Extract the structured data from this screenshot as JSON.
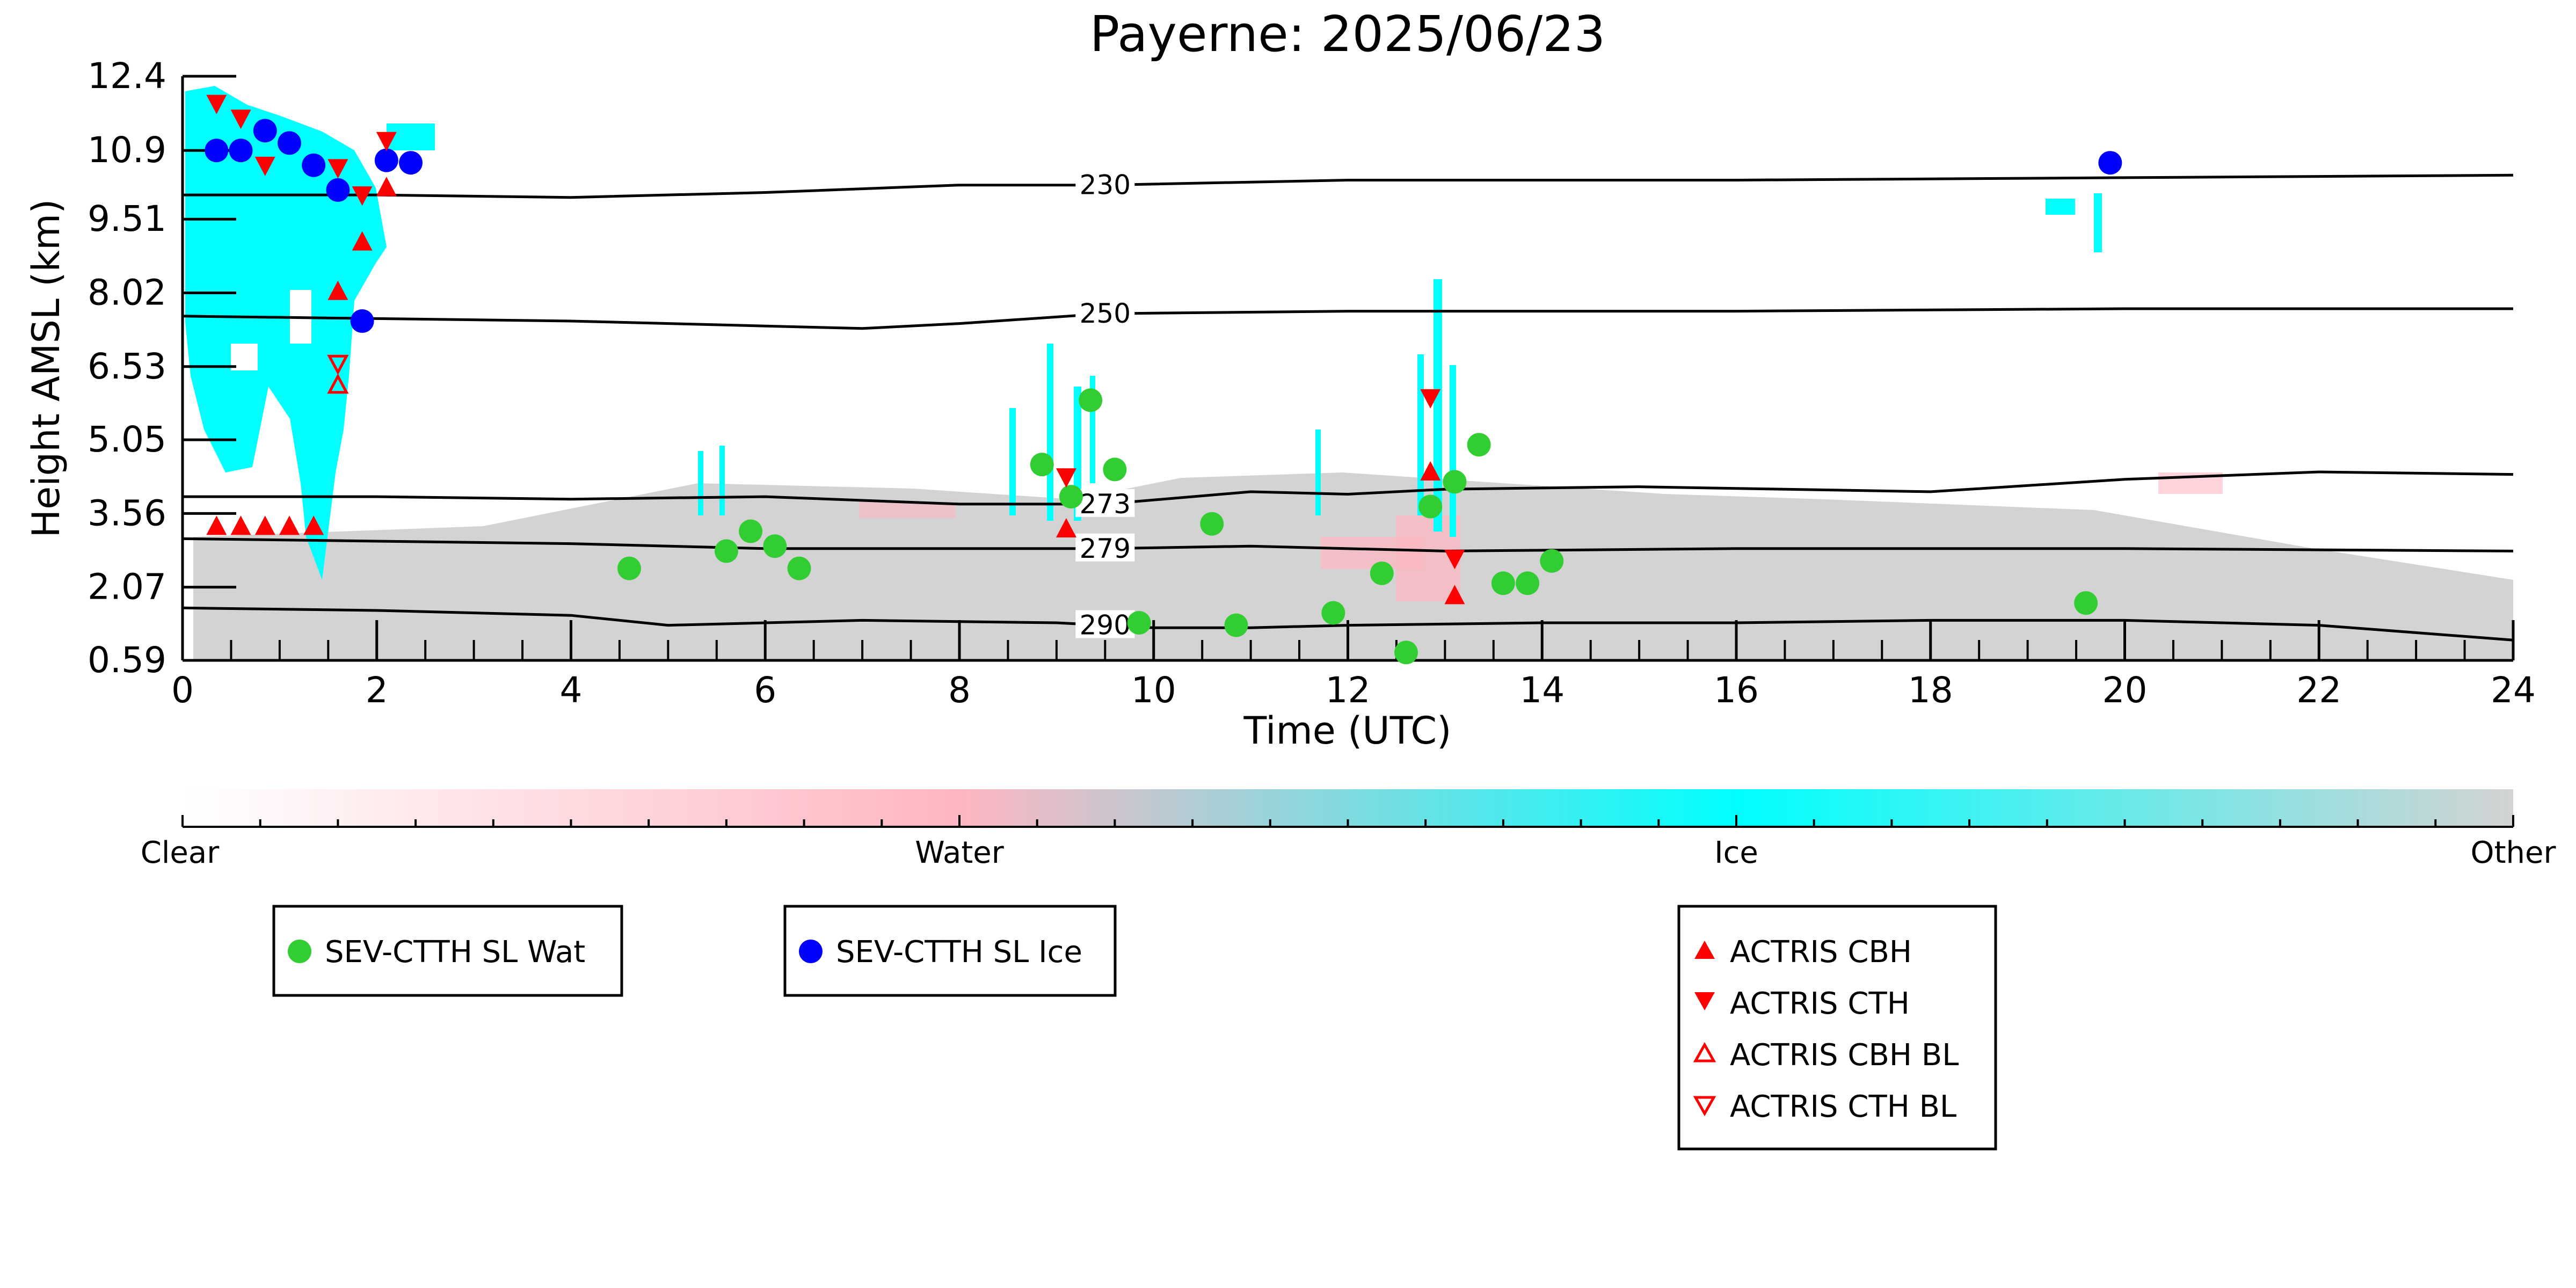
{
  "chart_data": {
    "type": "scatter",
    "title": "Payerne: 2025/06/23",
    "xlabel": "Time (UTC)",
    "ylabel": "Height AMSL (km)",
    "xlim": [
      0,
      24
    ],
    "ylim": [
      0.59,
      12.4
    ],
    "x_ticks": [
      "0",
      "2",
      "4",
      "6",
      "8",
      "10",
      "12",
      "14",
      "16",
      "18",
      "20",
      "22",
      "24"
    ],
    "y_ticks": [
      "0.59",
      "2.07",
      "3.56",
      "5.05",
      "6.53",
      "8.02",
      "9.51",
      "10.9",
      "12.4"
    ],
    "grid": false,
    "background_cloud_classification": {
      "categories": [
        "Clear",
        "Water",
        "Ice",
        "Other"
      ],
      "colors": [
        "#ffffff",
        "#ffb6c1",
        "#00ffff",
        "#d3d3d3"
      ]
    },
    "temperature_isolines": [
      {
        "label": "230",
        "x": [
          0,
          2,
          4,
          6,
          8,
          9.5,
          12,
          16,
          20,
          24
        ],
        "y": [
          10.0,
          10.0,
          9.95,
          10.05,
          10.2,
          10.2,
          10.3,
          10.3,
          10.35,
          10.4
        ]
      },
      {
        "label": "250",
        "x": [
          0,
          2,
          4,
          6,
          7,
          8,
          9.5,
          12,
          16,
          20,
          24
        ],
        "y": [
          7.55,
          7.5,
          7.45,
          7.35,
          7.3,
          7.4,
          7.6,
          7.65,
          7.65,
          7.7,
          7.7
        ]
      },
      {
        "label": "273",
        "x": [
          0,
          2,
          4,
          6,
          8,
          9.5,
          11,
          12,
          13,
          15,
          18,
          20,
          22,
          24
        ],
        "y": [
          3.9,
          3.9,
          3.85,
          3.9,
          3.75,
          3.75,
          4.0,
          3.95,
          4.05,
          4.1,
          4.0,
          4.25,
          4.4,
          4.35
        ]
      },
      {
        "label": "279",
        "x": [
          0,
          2,
          4,
          6,
          8,
          9.5,
          11,
          13,
          16,
          20,
          24
        ],
        "y": [
          3.05,
          3.0,
          2.95,
          2.85,
          2.85,
          2.85,
          2.9,
          2.8,
          2.85,
          2.85,
          2.8
        ]
      },
      {
        "label": "290",
        "x": [
          0,
          2,
          4,
          5,
          7,
          9,
          10,
          11,
          12,
          14,
          16,
          18,
          20,
          22,
          24
        ],
        "y": [
          1.65,
          1.6,
          1.5,
          1.3,
          1.4,
          1.35,
          1.25,
          1.25,
          1.3,
          1.35,
          1.35,
          1.4,
          1.4,
          1.3,
          1.0
        ]
      }
    ],
    "series": [
      {
        "name": "SEV-CTTH SL Wat",
        "marker": "circle",
        "color": "#32cd32",
        "x": [
          4.6,
          5.6,
          5.85,
          6.1,
          6.35,
          8.85,
          9.15,
          9.35,
          9.6,
          9.85,
          10.6,
          10.85,
          11.85,
          12.35,
          12.6,
          12.85,
          13.1,
          13.35,
          13.6,
          13.85,
          14.1,
          19.6
        ],
        "y": [
          2.45,
          2.8,
          3.2,
          2.9,
          2.45,
          4.55,
          3.9,
          5.85,
          4.45,
          1.35,
          3.35,
          1.3,
          1.55,
          2.35,
          0.75,
          3.7,
          4.2,
          4.95,
          2.15,
          2.15,
          2.6,
          1.75
        ]
      },
      {
        "name": "SEV-CTTH SL Ice",
        "marker": "circle",
        "color": "#0000ff",
        "x": [
          0.35,
          0.6,
          0.85,
          1.1,
          1.35,
          1.6,
          1.85,
          2.1,
          2.35,
          19.85
        ],
        "y": [
          10.9,
          10.9,
          11.3,
          11.05,
          10.6,
          10.1,
          7.45,
          10.7,
          10.65,
          10.65
        ]
      },
      {
        "name": "ACTRIS CBH",
        "marker": "triangle-up",
        "color": "#ff0000",
        "x": [
          0.35,
          0.6,
          0.85,
          1.1,
          1.35,
          1.6,
          1.85,
          2.1,
          9.1,
          12.85,
          13.1
        ],
        "y": [
          3.3,
          3.3,
          3.3,
          3.3,
          3.3,
          8.05,
          9.05,
          10.15,
          3.25,
          4.4,
          1.9
        ]
      },
      {
        "name": "ACTRIS CTH",
        "marker": "triangle-down",
        "color": "#ff0000",
        "x": [
          0.35,
          0.6,
          0.85,
          1.6,
          1.85,
          2.1,
          9.1,
          12.85,
          13.1
        ],
        "y": [
          11.85,
          11.55,
          10.6,
          10.55,
          10.0,
          11.1,
          4.3,
          5.9,
          2.65
        ]
      },
      {
        "name": "ACTRIS CBH BL",
        "marker": "triangle-up-open",
        "color": "#ff0000",
        "x": [
          1.6
        ],
        "y": [
          6.15
        ]
      },
      {
        "name": "ACTRIS CTH BL",
        "marker": "triangle-down-open",
        "color": "#ff0000",
        "x": [
          1.6
        ],
        "y": [
          6.6
        ]
      }
    ]
  },
  "legends": {
    "group1": [
      "SEV-CTTH SL Wat"
    ],
    "group2": [
      "SEV-CTTH SL Ice"
    ],
    "group3": [
      "ACTRIS CBH",
      "ACTRIS CTH",
      "ACTRIS CBH BL",
      "ACTRIS CTH BL"
    ]
  }
}
